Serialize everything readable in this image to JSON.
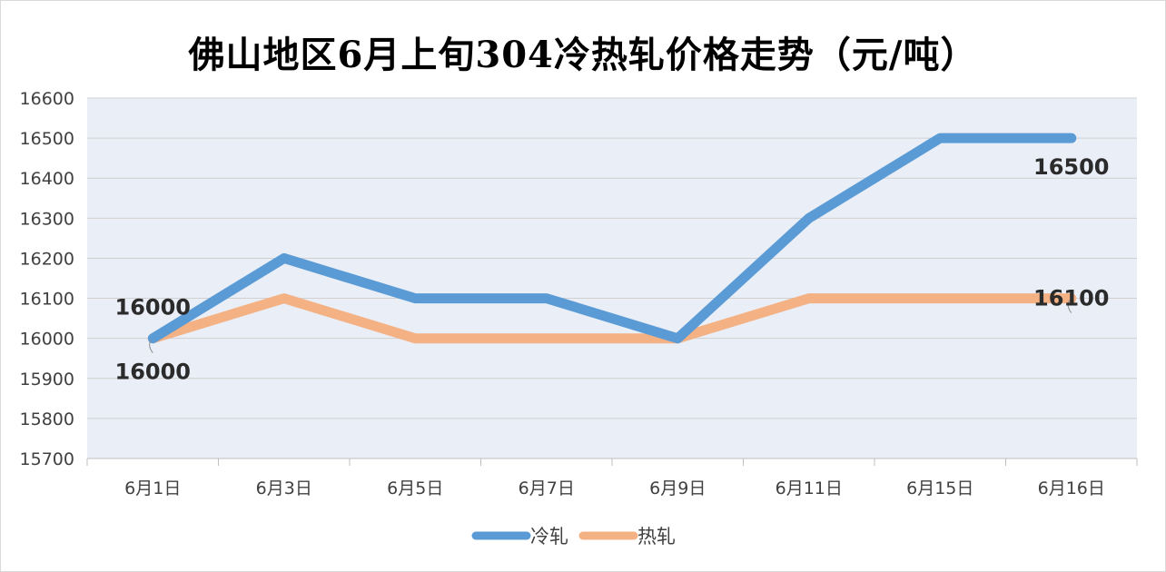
{
  "chart_data": {
    "type": "line",
    "title": "佛山地区6月上旬304冷热轧价格走势（元/吨）",
    "categories": [
      "6月1日",
      "6月3日",
      "6月5日",
      "6月7日",
      "6月9日",
      "6月11日",
      "6月15日",
      "6月16日"
    ],
    "series": [
      {
        "name": "冷轧",
        "values": [
          16000,
          16200,
          16100,
          16100,
          16000,
          16300,
          16500,
          16500
        ],
        "color": "#5b9bd5",
        "data_labels": [
          {
            "index": 0,
            "text": "16000"
          },
          {
            "index": 7,
            "text": "16500"
          }
        ]
      },
      {
        "name": "热轧",
        "values": [
          16000,
          16100,
          16000,
          16000,
          16000,
          16100,
          16100,
          16100
        ],
        "color": "#f4b183",
        "data_labels": [
          {
            "index": 0,
            "text": "16000"
          },
          {
            "index": 7,
            "text": "16100"
          }
        ]
      }
    ],
    "ylim": [
      15700,
      16600
    ],
    "yticks": [
      15700,
      15800,
      15900,
      16000,
      16100,
      16200,
      16300,
      16400,
      16500,
      16600
    ],
    "xlabel": "",
    "ylabel": "",
    "grid": true,
    "plot_background": "#e9eef7",
    "gridline_color": "#d0d0d0",
    "legend_position": "bottom"
  }
}
